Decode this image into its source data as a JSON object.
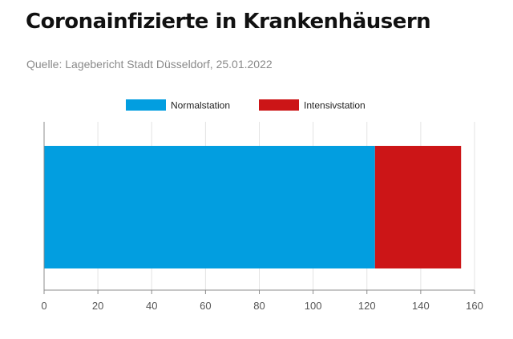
{
  "header": {
    "title": "Coronainfizierte in Krankenhäusern",
    "source": "Quelle: Lagebericht Stadt Düsseldorf, 25.01.2022"
  },
  "colors": {
    "normal": "#029ee0",
    "intensive": "#cc1517",
    "grid": "#e3e3e3",
    "axis": "#8c8c8c",
    "tick_text": "#555555"
  },
  "chart_data": {
    "type": "bar",
    "orientation": "horizontal",
    "stacked": true,
    "categories": [
      ""
    ],
    "series": [
      {
        "name": "Normalstation",
        "values": [
          123
        ]
      },
      {
        "name": "Intensivstation",
        "values": [
          32
        ]
      }
    ],
    "xlim": [
      0,
      160
    ],
    "xticks": [
      0,
      20,
      40,
      60,
      80,
      100,
      120,
      140,
      160
    ],
    "grid": true,
    "legend": "top-center"
  }
}
